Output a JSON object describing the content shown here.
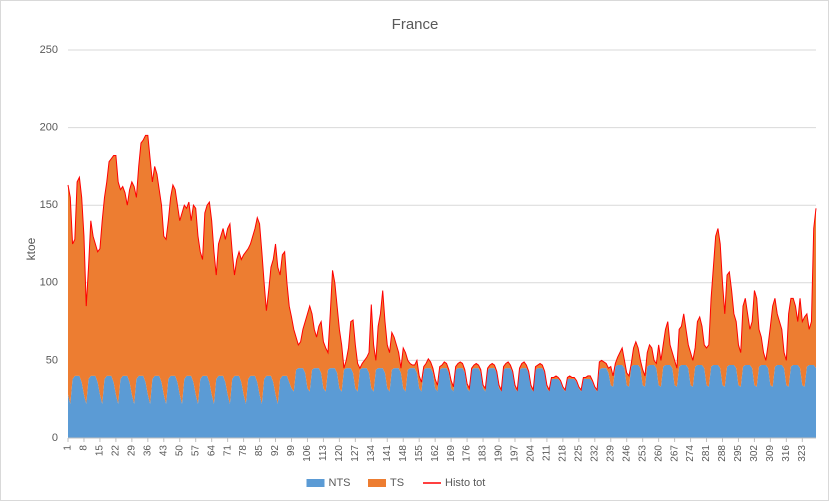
{
  "chart_data": {
    "type": "stacked-area",
    "title": "France",
    "ylabel": "ktoe",
    "x": [
      1,
      2,
      3,
      4,
      5,
      6,
      7,
      8,
      9,
      10,
      11,
      12,
      13,
      14,
      15,
      16,
      17,
      18,
      19,
      20,
      21,
      22,
      23,
      24,
      25,
      26,
      27,
      28,
      29,
      30,
      31,
      32,
      33,
      34,
      35,
      36,
      37,
      38,
      39,
      40,
      41,
      42,
      43,
      44,
      45,
      46,
      47,
      48,
      49,
      50,
      51,
      52,
      53,
      54,
      55,
      56,
      57,
      58,
      59,
      60,
      61,
      62,
      63,
      64,
      65,
      66,
      67,
      68,
      69,
      70,
      71,
      72,
      73,
      74,
      75,
      76,
      77,
      78,
      79,
      80,
      81,
      82,
      83,
      84,
      85,
      86,
      87,
      88,
      89,
      90,
      91,
      92,
      93,
      94,
      95,
      96,
      97,
      98,
      99,
      100,
      101,
      102,
      103,
      104,
      105,
      106,
      107,
      108,
      109,
      110,
      111,
      112,
      113,
      114,
      115,
      116,
      117,
      118,
      119,
      120,
      121,
      122,
      123,
      124,
      125,
      126,
      127,
      128,
      129,
      130,
      131,
      132,
      133,
      134,
      135,
      136,
      137,
      138,
      139,
      140,
      141,
      142,
      143,
      144,
      145,
      146,
      147,
      148,
      149,
      150,
      151,
      152,
      153,
      154,
      155,
      156,
      157,
      158,
      159,
      160,
      161,
      162,
      163,
      164,
      165,
      166,
      167,
      168,
      169,
      170,
      171,
      172,
      173,
      174,
      175,
      176,
      177,
      178,
      179,
      180,
      181,
      182,
      183,
      184,
      185,
      186,
      187,
      188,
      189,
      190,
      191,
      192,
      193,
      194,
      195,
      196,
      197,
      198,
      199,
      200,
      201,
      202,
      203,
      204,
      205,
      206,
      207,
      208,
      209,
      210,
      211,
      212,
      213,
      214,
      215,
      216,
      217,
      218,
      219,
      220,
      221,
      222,
      223,
      224,
      225,
      226,
      227,
      228,
      229,
      230,
      231,
      232,
      233,
      234,
      235,
      236,
      237,
      238,
      239,
      240,
      241,
      242,
      243,
      244,
      245,
      246,
      247,
      248,
      249,
      250,
      251,
      252,
      253,
      254,
      255,
      256,
      257,
      258,
      259,
      260,
      261,
      262,
      263,
      264,
      265,
      266,
      267,
      268,
      269,
      270,
      271,
      272,
      273,
      274,
      275,
      276,
      277,
      278,
      279,
      280,
      281,
      282,
      283,
      284,
      285,
      286,
      287,
      288,
      289,
      290,
      291,
      292,
      293,
      294,
      295,
      296,
      297,
      298,
      299,
      300,
      301,
      302,
      303,
      304,
      305,
      306,
      307,
      308,
      309,
      310,
      311,
      312,
      313,
      314,
      315,
      316,
      317,
      318,
      319,
      320,
      321,
      322,
      323,
      324,
      325,
      326,
      327,
      328,
      329
    ],
    "xlim": [
      1,
      329
    ],
    "xticks": [
      1,
      8,
      15,
      22,
      29,
      36,
      43,
      50,
      57,
      64,
      71,
      78,
      85,
      92,
      99,
      106,
      113,
      120,
      127,
      134,
      141,
      148,
      155,
      162,
      169,
      176,
      183,
      190,
      197,
      204,
      211,
      218,
      225,
      232,
      239,
      246,
      253,
      260,
      267,
      274,
      281,
      288,
      295,
      302,
      309,
      316,
      323
    ],
    "ylim": [
      0,
      250
    ],
    "yticks": [
      0,
      50,
      100,
      150,
      200,
      250
    ],
    "grid": true,
    "series": [
      {
        "name": "NTS",
        "color": "#5b9bd5",
        "kind": "area",
        "values": [
          28,
          22,
          38,
          40,
          40,
          40,
          36,
          28,
          22,
          38,
          40,
          40,
          40,
          36,
          28,
          22,
          38,
          40,
          40,
          40,
          36,
          28,
          22,
          38,
          40,
          40,
          40,
          36,
          28,
          22,
          38,
          40,
          40,
          40,
          36,
          28,
          22,
          38,
          40,
          40,
          40,
          36,
          28,
          22,
          38,
          40,
          40,
          40,
          36,
          28,
          22,
          38,
          40,
          40,
          40,
          36,
          28,
          22,
          38,
          40,
          40,
          40,
          36,
          28,
          22,
          38,
          40,
          40,
          40,
          36,
          28,
          22,
          38,
          40,
          40,
          40,
          36,
          28,
          22,
          38,
          40,
          40,
          40,
          36,
          28,
          22,
          38,
          40,
          40,
          40,
          36,
          28,
          22,
          38,
          40,
          40,
          40,
          36,
          32,
          30,
          44,
          45,
          45,
          45,
          42,
          32,
          30,
          44,
          45,
          45,
          45,
          42,
          32,
          30,
          44,
          45,
          45,
          45,
          42,
          32,
          30,
          44,
          45,
          45,
          45,
          42,
          32,
          30,
          44,
          45,
          45,
          45,
          42,
          32,
          30,
          44,
          45,
          45,
          45,
          42,
          32,
          30,
          44,
          45,
          45,
          45,
          42,
          32,
          30,
          44,
          45,
          45,
          45,
          42,
          32,
          30,
          44,
          45,
          45,
          45,
          42,
          32,
          30,
          44,
          45,
          45,
          45,
          42,
          32,
          30,
          44,
          45,
          45,
          45,
          42,
          32,
          30,
          44,
          45,
          45,
          45,
          42,
          32,
          30,
          44,
          45,
          45,
          45,
          42,
          32,
          30,
          44,
          45,
          45,
          45,
          42,
          32,
          30,
          44,
          45,
          45,
          45,
          42,
          32,
          30,
          44,
          45,
          45,
          45,
          42,
          32,
          30,
          38,
          38,
          38,
          38,
          36,
          32,
          30,
          38,
          38,
          38,
          38,
          36,
          32,
          30,
          38,
          38,
          38,
          38,
          36,
          32,
          30,
          44,
          45,
          45,
          45,
          42,
          34,
          33,
          46,
          47,
          47,
          47,
          45,
          34,
          33,
          46,
          47,
          47,
          47,
          45,
          34,
          33,
          46,
          47,
          47,
          47,
          45,
          34,
          33,
          46,
          47,
          47,
          47,
          45,
          34,
          33,
          46,
          47,
          47,
          47,
          45,
          34,
          33,
          46,
          47,
          47,
          47,
          45,
          34,
          33,
          46,
          47,
          47,
          47,
          45,
          34,
          33,
          46,
          47,
          47,
          47,
          45,
          34,
          33,
          46,
          47,
          47,
          47,
          45,
          34,
          33,
          46,
          47,
          47,
          47,
          45,
          34,
          33,
          46,
          47,
          47,
          47,
          45,
          34,
          33,
          46,
          47,
          47,
          47,
          45,
          34,
          33,
          46,
          47,
          47,
          47,
          45
        ]
      },
      {
        "name": "TS",
        "color": "#ed7d31",
        "kind": "area",
        "values": [
          135,
          133,
          87,
          88,
          125,
          128,
          119,
          102,
          63,
          72,
          100,
          90,
          85,
          84,
          94,
          118,
          117,
          125,
          138,
          140,
          146,
          154,
          143,
          122,
          122,
          118,
          110,
          124,
          137,
          140,
          117,
          135,
          150,
          152,
          159,
          167,
          158,
          127,
          135,
          130,
          120,
          114,
          102,
          106,
          102,
          115,
          123,
          120,
          114,
          112,
          123,
          112,
          108,
          112,
          100,
          114,
          120,
          108,
          82,
          75,
          105,
          110,
          116,
          112,
          98,
          67,
          85,
          90,
          95,
          92,
          107,
          116,
          82,
          65,
          75,
          80,
          79,
          90,
          98,
          84,
          85,
          90,
          95,
          106,
          110,
          98,
          62,
          42,
          55,
          70,
          79,
          97,
          88,
          67,
          78,
          80,
          60,
          49,
          46,
          40,
          21,
          15,
          17,
          25,
          33,
          48,
          55,
          36,
          25,
          20,
          27,
          33,
          30,
          28,
          11,
          35,
          63,
          55,
          43,
          38,
          30,
          1,
          5,
          13,
          30,
          34,
          28,
          18,
          1,
          3,
          5,
          7,
          13,
          54,
          30,
          6,
          27,
          35,
          50,
          33,
          28,
          25,
          24,
          20,
          15,
          10,
          3,
          26,
          25,
          6,
          3,
          2,
          2,
          8,
          8,
          6,
          2,
          3,
          6,
          4,
          3,
          6,
          4,
          2,
          2,
          4,
          3,
          2,
          5,
          3,
          2,
          3,
          4,
          3,
          2,
          3,
          2,
          1,
          2,
          3,
          2,
          2,
          2,
          2,
          1,
          2,
          3,
          2,
          1,
          2,
          1,
          2,
          3,
          4,
          2,
          1,
          2,
          1,
          1,
          3,
          4,
          2,
          1,
          2,
          1,
          2,
          2,
          3,
          2,
          1,
          2,
          1,
          1,
          1,
          2,
          1,
          1,
          1,
          1,
          1,
          2,
          1,
          1,
          1,
          1,
          1,
          1,
          1,
          2,
          2,
          1,
          1,
          1,
          5,
          5,
          4,
          3,
          3,
          12,
          7,
          2,
          5,
          8,
          11,
          5,
          8,
          7,
          2,
          11,
          15,
          11,
          5,
          10,
          7,
          9,
          13,
          11,
          3,
          3,
          26,
          17,
          14,
          23,
          28,
          13,
          10,
          16,
          12,
          24,
          25,
          33,
          23,
          15,
          21,
          17,
          12,
          28,
          31,
          25,
          15,
          24,
          27,
          44,
          63,
          83,
          88,
          80,
          66,
          47,
          59,
          60,
          48,
          33,
          30,
          26,
          22,
          39,
          43,
          33,
          23,
          30,
          61,
          57,
          24,
          18,
          8,
          3,
          15,
          38,
          52,
          44,
          33,
          28,
          23,
          10,
          16,
          47,
          44,
          43,
          38,
          28,
          45,
          41,
          45,
          34,
          23,
          28,
          88,
          103
        ]
      },
      {
        "name": "Histo tot",
        "color": "#ff0000",
        "kind": "line",
        "values": [
          163,
          155,
          125,
          128,
          165,
          168,
          155,
          130,
          85,
          110,
          140,
          130,
          125,
          120,
          122,
          140,
          155,
          165,
          178,
          180,
          182,
          182,
          165,
          160,
          162,
          158,
          150,
          160,
          165,
          162,
          155,
          175,
          190,
          192,
          195,
          195,
          180,
          165,
          175,
          170,
          160,
          150,
          130,
          128,
          140,
          155,
          163,
          160,
          150,
          140,
          145,
          150,
          148,
          152,
          140,
          150,
          148,
          130,
          120,
          115,
          145,
          150,
          152,
          140,
          120,
          105,
          125,
          130,
          135,
          128,
          135,
          138,
          120,
          105,
          115,
          120,
          115,
          118,
          120,
          122,
          125,
          130,
          135,
          142,
          138,
          120,
          100,
          82,
          95,
          110,
          115,
          125,
          110,
          105,
          118,
          120,
          100,
          85,
          78,
          70,
          65,
          60,
          62,
          70,
          75,
          80,
          85,
          80,
          70,
          65,
          72,
          75,
          62,
          58,
          55,
          80,
          108,
          100,
          85,
          70,
          60,
          45,
          50,
          58,
          75,
          76,
          60,
          48,
          45,
          48,
          50,
          52,
          55,
          86,
          60,
          50,
          72,
          80,
          95,
          75,
          60,
          55,
          68,
          65,
          60,
          55,
          45,
          58,
          55,
          50,
          48,
          47,
          47,
          50,
          40,
          36,
          46,
          48,
          51,
          49,
          45,
          38,
          34,
          46,
          47,
          49,
          48,
          44,
          37,
          33,
          46,
          48,
          49,
          48,
          44,
          35,
          32,
          45,
          47,
          48,
          47,
          44,
          34,
          32,
          45,
          47,
          48,
          47,
          43,
          34,
          31,
          46,
          48,
          49,
          47,
          43,
          34,
          31,
          45,
          48,
          49,
          47,
          43,
          34,
          31,
          46,
          47,
          48,
          47,
          43,
          34,
          31,
          39,
          39,
          40,
          39,
          37,
          33,
          31,
          39,
          40,
          39,
          39,
          37,
          33,
          31,
          39,
          39,
          40,
          40,
          37,
          33,
          31,
          49,
          50,
          49,
          48,
          45,
          46,
          40,
          48,
          52,
          55,
          58,
          50,
          42,
          40,
          48,
          58,
          62,
          58,
          50,
          44,
          40,
          55,
          60,
          58,
          50,
          48,
          60,
          50,
          60,
          70,
          75,
          60,
          55,
          50,
          45,
          70,
          72,
          80,
          70,
          60,
          55,
          50,
          58,
          75,
          78,
          72,
          60,
          58,
          60,
          90,
          110,
          130,
          135,
          125,
          100,
          80,
          105,
          107,
          95,
          80,
          75,
          60,
          55,
          85,
          90,
          80,
          70,
          75,
          95,
          90,
          70,
          65,
          55,
          50,
          60,
          72,
          85,
          90,
          80,
          75,
          70,
          55,
          50,
          80,
          90,
          90,
          85,
          75,
          90,
          75,
          78,
          80,
          70,
          75,
          135,
          148
        ]
      }
    ],
    "legend": "bottom"
  }
}
